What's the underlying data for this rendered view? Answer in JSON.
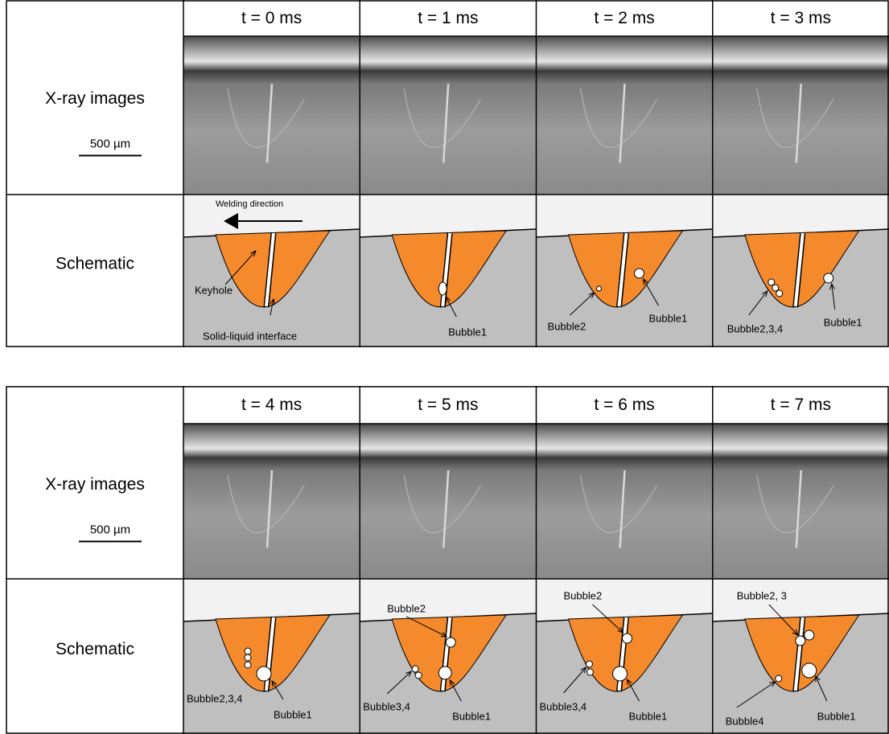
{
  "panels": [
    {
      "row_labels": {
        "xray": "X-ray images",
        "scale": "500 µm",
        "schematic": "Schematic"
      },
      "frames": [
        {
          "time": "t = 0 ms",
          "annotations": [
            "Welding direction",
            "Keyhole",
            "Solid-liquid  interface"
          ]
        },
        {
          "time": "t = 1 ms",
          "annotations": [
            "Bubble1"
          ]
        },
        {
          "time": "t = 2 ms",
          "annotations": [
            "Bubble2",
            "Bubble1"
          ]
        },
        {
          "time": "t = 3 ms",
          "annotations": [
            "Bubble2,3,4",
            "Bubble1"
          ]
        }
      ]
    },
    {
      "row_labels": {
        "xray": "X-ray images",
        "scale": "500 µm",
        "schematic": "Schematic"
      },
      "frames": [
        {
          "time": "t = 4 ms",
          "annotations": [
            "Bubble2,3,4",
            "Bubble1"
          ]
        },
        {
          "time": "t = 5 ms",
          "annotations": [
            "Bubble2",
            "Bubble3,4",
            "Bubble1"
          ]
        },
        {
          "time": "t = 6 ms",
          "annotations": [
            "Bubble2",
            "Bubble3,4",
            "Bubble1"
          ]
        },
        {
          "time": "t = 7 ms",
          "annotations": [
            "Bubble2, 3",
            "Bubble4",
            "Bubble1"
          ]
        }
      ]
    }
  ]
}
